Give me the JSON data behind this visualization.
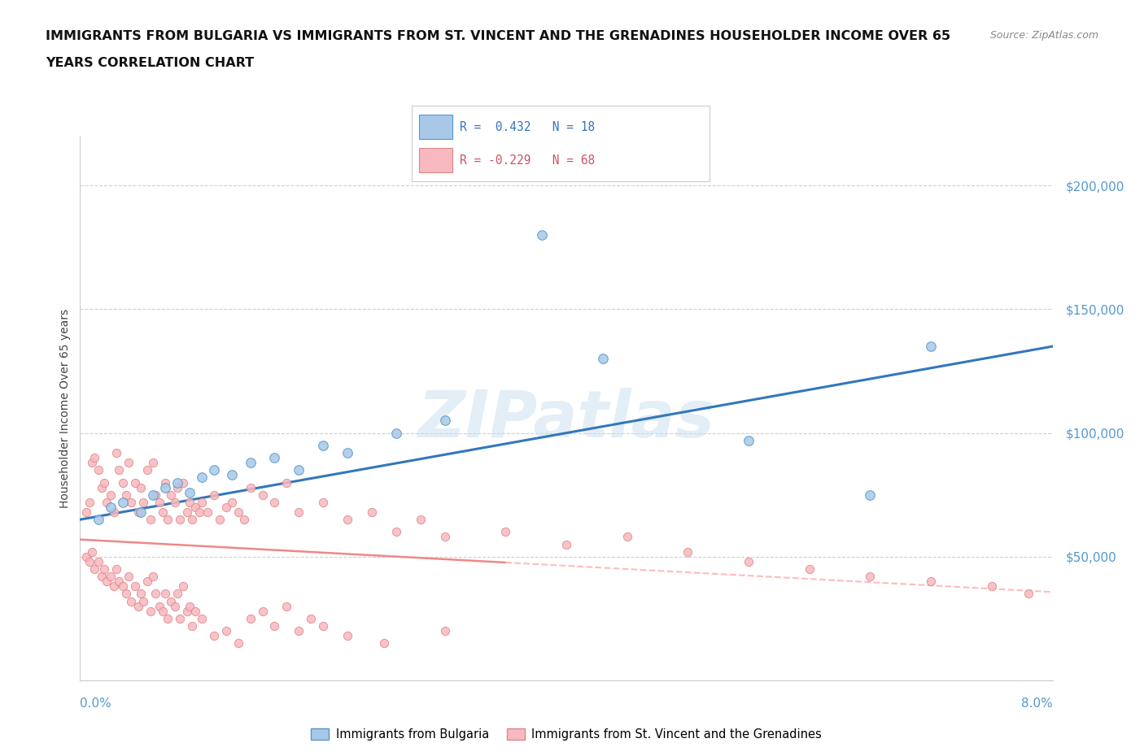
{
  "title_line1": "IMMIGRANTS FROM BULGARIA VS IMMIGRANTS FROM ST. VINCENT AND THE GRENADINES HOUSEHOLDER INCOME OVER 65",
  "title_line2": "YEARS CORRELATION CHART",
  "source_text": "Source: ZipAtlas.com",
  "ylabel": "Householder Income Over 65 years",
  "xlim": [
    0.0,
    8.0
  ],
  "ylim": [
    0,
    220000
  ],
  "yticks": [
    0,
    50000,
    100000,
    150000,
    200000
  ],
  "ytick_labels": [
    "",
    "$50,000",
    "$100,000",
    "$150,000",
    "$200,000"
  ],
  "watermark": "ZIPatlas",
  "bg_color": "#ffffff",
  "grid_color": "#bbbbbb",
  "bulgaria_color": "#a8c8e8",
  "bulgaria_edge": "#5599cc",
  "stv_color": "#f8b8c0",
  "stv_edge": "#dd8888",
  "bulgaria_line_color": "#3377bb",
  "stv_line_color": "#ee8888",
  "stv_line_dash_color": "#ffbbbb",
  "legend_r_bulgaria": " 0.432",
  "legend_n_bulgaria": "18",
  "legend_r_stv": "-0.229",
  "legend_n_stv": "68",
  "bulgaria_x": [
    0.15,
    0.25,
    0.35,
    0.5,
    0.6,
    0.7,
    0.8,
    0.9,
    1.0,
    1.1,
    1.25,
    1.4,
    1.6,
    1.8,
    2.0,
    2.2,
    2.6,
    3.0,
    4.3,
    5.5,
    6.5,
    7.0
  ],
  "bulgaria_y": [
    65000,
    70000,
    72000,
    68000,
    75000,
    78000,
    80000,
    76000,
    82000,
    85000,
    83000,
    88000,
    90000,
    85000,
    95000,
    92000,
    100000,
    105000,
    130000,
    97000,
    75000,
    135000
  ],
  "bulgaria_outlier_x": [
    3.8
  ],
  "bulgaria_outlier_y": [
    180000
  ],
  "stv_x": [
    0.05,
    0.08,
    0.1,
    0.12,
    0.15,
    0.18,
    0.2,
    0.22,
    0.25,
    0.28,
    0.3,
    0.32,
    0.35,
    0.38,
    0.4,
    0.42,
    0.45,
    0.48,
    0.5,
    0.52,
    0.55,
    0.58,
    0.6,
    0.62,
    0.65,
    0.68,
    0.7,
    0.72,
    0.75,
    0.78,
    0.8,
    0.82,
    0.85,
    0.88,
    0.9,
    0.92,
    0.95,
    0.98,
    1.0,
    1.05,
    1.1,
    1.15,
    1.2,
    1.25,
    1.3,
    1.35,
    1.4,
    1.5,
    1.6,
    1.7,
    1.8,
    2.0,
    2.2,
    2.4,
    2.6,
    2.8,
    3.0,
    3.5,
    4.0,
    4.5,
    5.0,
    5.5,
    6.0,
    6.5,
    7.0,
    7.5,
    7.8
  ],
  "stv_y": [
    68000,
    72000,
    88000,
    90000,
    85000,
    78000,
    80000,
    72000,
    75000,
    68000,
    92000,
    85000,
    80000,
    75000,
    88000,
    72000,
    80000,
    68000,
    78000,
    72000,
    85000,
    65000,
    88000,
    75000,
    72000,
    68000,
    80000,
    65000,
    75000,
    72000,
    78000,
    65000,
    80000,
    68000,
    72000,
    65000,
    70000,
    68000,
    72000,
    68000,
    75000,
    65000,
    70000,
    72000,
    68000,
    65000,
    78000,
    75000,
    72000,
    80000,
    68000,
    72000,
    65000,
    68000,
    60000,
    65000,
    58000,
    60000,
    55000,
    58000,
    52000,
    48000,
    45000,
    42000,
    40000,
    38000,
    35000
  ],
  "stv_low_x": [
    0.05,
    0.08,
    0.1,
    0.12,
    0.15,
    0.18,
    0.2,
    0.22,
    0.25,
    0.28,
    0.3,
    0.32,
    0.35,
    0.38,
    0.4,
    0.42,
    0.45,
    0.48,
    0.5,
    0.52,
    0.55,
    0.58,
    0.6,
    0.62,
    0.65,
    0.68,
    0.7,
    0.72,
    0.75,
    0.78,
    0.8,
    0.82,
    0.85,
    0.88,
    0.9,
    0.92,
    0.95,
    1.0,
    1.1,
    1.2,
    1.3,
    1.4,
    1.5,
    1.6,
    1.7,
    1.8,
    1.9,
    2.0,
    2.2,
    2.5,
    3.0
  ],
  "stv_low_y": [
    50000,
    48000,
    52000,
    45000,
    48000,
    42000,
    45000,
    40000,
    42000,
    38000,
    45000,
    40000,
    38000,
    35000,
    42000,
    32000,
    38000,
    30000,
    35000,
    32000,
    40000,
    28000,
    42000,
    35000,
    30000,
    28000,
    35000,
    25000,
    32000,
    30000,
    35000,
    25000,
    38000,
    28000,
    30000,
    22000,
    28000,
    25000,
    18000,
    20000,
    15000,
    25000,
    28000,
    22000,
    30000,
    20000,
    25000,
    22000,
    18000,
    15000,
    20000
  ]
}
